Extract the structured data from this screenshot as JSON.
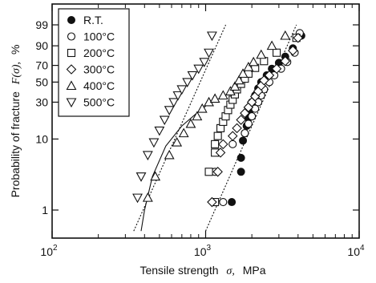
{
  "chart_data": {
    "type": "scatter",
    "xscale": "log",
    "yscale": "weibull-probability",
    "xlim": [
      100,
      10000
    ],
    "ylim_percent": [
      0.5,
      99.9
    ],
    "xlabel_prefix": "Tensile strength",
    "xlabel_symbol": "σ,",
    "xlabel_unit": "MPa",
    "ylabel_prefix": "Probability of fracture",
    "ylabel_symbol": "F(σ),",
    "ylabel_unit": "%",
    "x_ticks": [
      {
        "value": 100,
        "base": "10",
        "exp": "2"
      },
      {
        "value": 1000,
        "base": "10",
        "exp": "3"
      },
      {
        "value": 10000,
        "base": "10",
        "exp": "4"
      }
    ],
    "y_ticks": [
      {
        "value": 1,
        "label": "1"
      },
      {
        "value": 10,
        "label": "10"
      },
      {
        "value": 30,
        "label": "30"
      },
      {
        "value": 50,
        "label": "50"
      },
      {
        "value": 70,
        "label": "70"
      },
      {
        "value": 90,
        "label": "90"
      },
      {
        "value": 99,
        "label": "99"
      }
    ],
    "legend_position": "top-left",
    "series": [
      {
        "name": "R.T.",
        "marker": "filled-circle",
        "points": [
          [
            1480,
            1.3
          ],
          [
            1700,
            3.5
          ],
          [
            1700,
            5.5
          ],
          [
            1750,
            9.5
          ],
          [
            1800,
            12
          ],
          [
            1850,
            15
          ],
          [
            1900,
            19
          ],
          [
            1950,
            24
          ],
          [
            2000,
            30
          ],
          [
            2100,
            36
          ],
          [
            2200,
            43
          ],
          [
            2300,
            50
          ],
          [
            2500,
            58
          ],
          [
            2700,
            66
          ],
          [
            3000,
            73
          ],
          [
            3300,
            80
          ],
          [
            3700,
            88
          ],
          [
            4200,
            96
          ]
        ]
      },
      {
        "name": "100°C",
        "marker": "open-circle",
        "points": [
          [
            1300,
            1.3
          ],
          [
            1150,
            3.5
          ],
          [
            1200,
            6.5
          ],
          [
            1500,
            8.5
          ],
          [
            1800,
            12
          ],
          [
            1900,
            16
          ],
          [
            2000,
            20
          ],
          [
            2100,
            25
          ],
          [
            2200,
            30
          ],
          [
            2300,
            36
          ],
          [
            2400,
            42
          ],
          [
            2600,
            50
          ],
          [
            2800,
            58
          ],
          [
            3100,
            66
          ],
          [
            3400,
            74
          ],
          [
            3800,
            84
          ],
          [
            4100,
            97
          ]
        ]
      },
      {
        "name": "200°C",
        "marker": "open-square",
        "points": [
          [
            1150,
            1.3
          ],
          [
            1050,
            3.5
          ],
          [
            1150,
            6.5
          ],
          [
            1150,
            8.5
          ],
          [
            1200,
            11
          ],
          [
            1250,
            14
          ],
          [
            1300,
            17
          ],
          [
            1350,
            20
          ],
          [
            1400,
            24
          ],
          [
            1450,
            28
          ],
          [
            1500,
            32
          ],
          [
            1550,
            37
          ],
          [
            1600,
            42
          ],
          [
            1700,
            48
          ],
          [
            1800,
            54
          ],
          [
            1900,
            60
          ],
          [
            2100,
            67
          ],
          [
            2400,
            75
          ],
          [
            2900,
            84
          ],
          [
            3900,
            95
          ]
        ]
      },
      {
        "name": "300°C",
        "marker": "open-diamond",
        "points": [
          [
            1100,
            1.3
          ],
          [
            1200,
            3.5
          ],
          [
            1250,
            6.5
          ],
          [
            1300,
            8.5
          ],
          [
            1500,
            11
          ],
          [
            1600,
            14
          ],
          [
            1700,
            18
          ],
          [
            1800,
            22
          ],
          [
            1900,
            26
          ],
          [
            2000,
            30
          ],
          [
            2100,
            35
          ],
          [
            2200,
            40
          ],
          [
            2300,
            46
          ],
          [
            2400,
            52
          ],
          [
            2600,
            58
          ],
          [
            2900,
            66
          ],
          [
            3300,
            75
          ],
          [
            3700,
            86
          ],
          [
            4000,
            95
          ]
        ]
      },
      {
        "name": "400°C",
        "marker": "open-triangle-up",
        "points": [
          [
            420,
            1.5
          ],
          [
            470,
            3.0
          ],
          [
            580,
            6.0
          ],
          [
            650,
            9.0
          ],
          [
            720,
            12
          ],
          [
            800,
            16
          ],
          [
            880,
            20
          ],
          [
            950,
            25
          ],
          [
            1050,
            30
          ],
          [
            1150,
            33
          ],
          [
            1300,
            36
          ],
          [
            1450,
            40
          ],
          [
            1550,
            45
          ],
          [
            1650,
            52
          ],
          [
            1750,
            60
          ],
          [
            1900,
            68
          ],
          [
            2050,
            74
          ],
          [
            2300,
            82
          ],
          [
            2700,
            90
          ],
          [
            3300,
            96
          ]
        ]
      },
      {
        "name": "500°C",
        "marker": "open-triangle-down",
        "points": [
          [
            360,
            1.5
          ],
          [
            380,
            3.0
          ],
          [
            420,
            6.0
          ],
          [
            460,
            9.0
          ],
          [
            500,
            13
          ],
          [
            540,
            18
          ],
          [
            580,
            24
          ],
          [
            620,
            30
          ],
          [
            660,
            36
          ],
          [
            700,
            42
          ],
          [
            760,
            50
          ],
          [
            820,
            58
          ],
          [
            900,
            66
          ],
          [
            980,
            74
          ],
          [
            1050,
            84
          ],
          [
            1100,
            96
          ]
        ]
      }
    ],
    "fit_lines": [
      {
        "style": "dotted",
        "points": [
          [
            340,
            0.5
          ],
          [
            1350,
            99
          ]
        ]
      },
      {
        "style": "solid",
        "points": [
          [
            380,
            0.5
          ],
          [
            400,
            1
          ],
          [
            450,
            3
          ],
          [
            550,
            8
          ],
          [
            700,
            15
          ],
          [
            900,
            23
          ],
          [
            1080,
            30
          ]
        ]
      },
      {
        "style": "dotted",
        "points": [
          [
            1000,
            0.5
          ],
          [
            3900,
            99
          ]
        ]
      }
    ]
  }
}
